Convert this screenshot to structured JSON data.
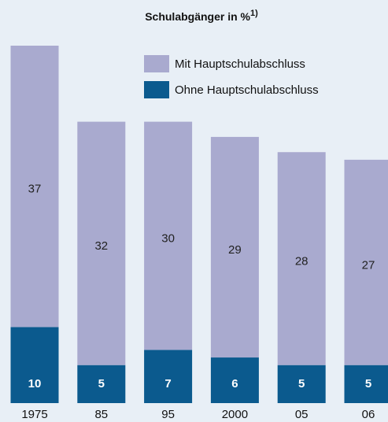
{
  "chart_data": {
    "type": "stacked_bar",
    "title": "Schulabgänger in %",
    "title_footnote": "1)",
    "categories": [
      "1975",
      "85",
      "95",
      "2000",
      "05",
      "06"
    ],
    "series": [
      {
        "name": "Ohne Hauptschulabschluss",
        "color": "#0b5a8e",
        "values": [
          10,
          5,
          7,
          6,
          5,
          5
        ]
      },
      {
        "name": "Mit Hauptschulabschluss",
        "color": "#a9aacf",
        "values": [
          37,
          32,
          30,
          29,
          28,
          27
        ]
      }
    ]
  }
}
